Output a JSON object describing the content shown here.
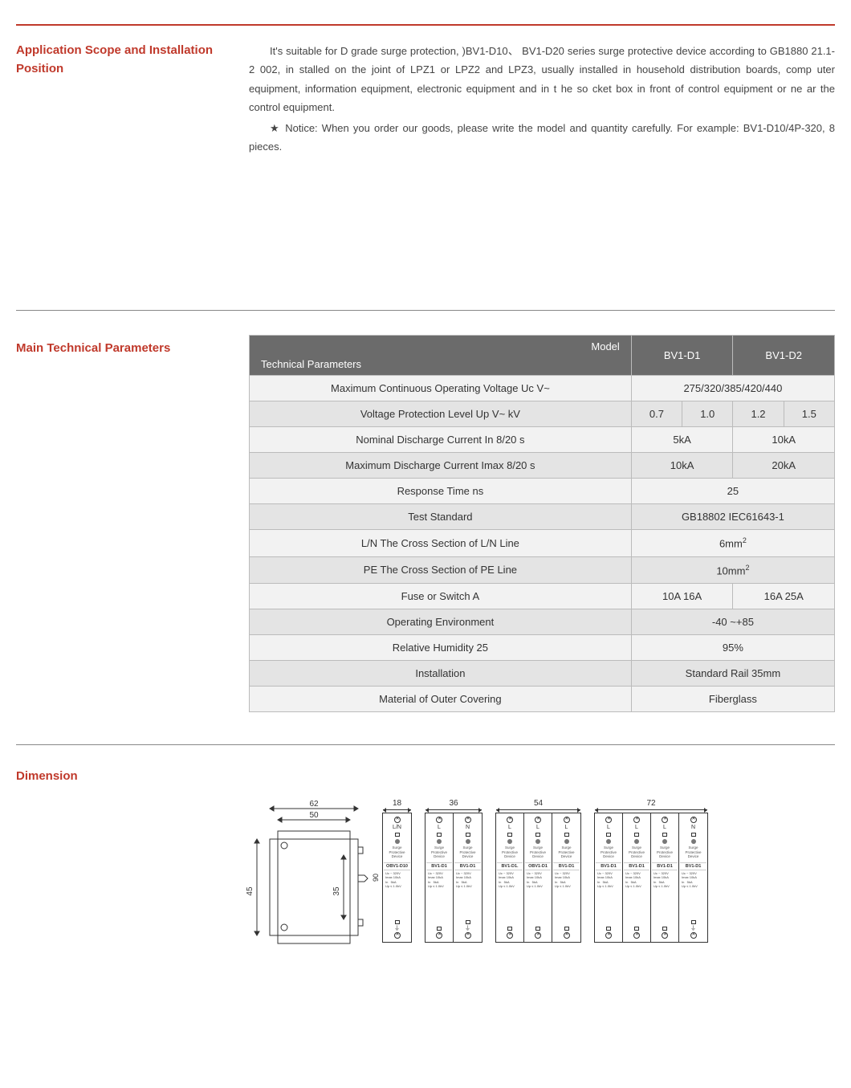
{
  "colors": {
    "accent": "#c0392b",
    "table_header_bg": "#6b6b6b",
    "row_odd": "#f2f2f2",
    "row_even": "#e4e4e4",
    "text": "#333333",
    "border": "#bbbbbb"
  },
  "intro": {
    "title": "Application Scope and Installation Position",
    "para1": "It's suitable for D grade surge protection,  )BV1-D10、  BV1-D20 series surge protective device according to GB1880 21.1-2 002,  in stalled on the joint of LPZ1 or LPZ2 and LPZ3, usually installed in household distribution boards, comp uter equipment, information equipment, electronic equipment and in t he so cket box in front of control equipment or ne ar the control equipment.",
    "notice": "Notice: When you order our goods, please write the model and quantity carefully. For example:   BV1-D10/4P-320, 8 pieces."
  },
  "table": {
    "title": "Main Technical Parameters",
    "header_diag_top": "Model",
    "header_diag_bottom": "Technical Parameters",
    "header_col_d1": "BV1-D1",
    "header_col_d2": "BV1-D2",
    "rows": [
      {
        "label": "Maximum Continuous Operating Voltage Uc   V~",
        "full": "275/320/385/420/440"
      },
      {
        "label": "Voltage Protection Level Up   V~   kV",
        "c1": "0.7",
        "c2": "1.0",
        "c3": "1.2",
        "c4": "1.5"
      },
      {
        "label": "Nominal Discharge Current In   8/20   s",
        "d1": "5kA",
        "d2": "10kA"
      },
      {
        "label": "Maximum Discharge Current Imax   8/20   s",
        "d1": "10kA",
        "d2": "20kA"
      },
      {
        "label": "Response Time ns",
        "full": "25"
      },
      {
        "label": "Test Standard",
        "full": "GB18802   IEC61643-1"
      },
      {
        "label": "L/N  The Cross Section of L/N Line",
        "full_html": "6mm<sup>2</sup>"
      },
      {
        "label": "PE The Cross Section of PE Line",
        "full_html": "10mm<sup>2</sup>"
      },
      {
        "label": "Fuse or Switch   A",
        "d1": "10A   16A",
        "d2": "16A   25A"
      },
      {
        "label": "Operating Environment",
        "full": "-40   ~+85"
      },
      {
        "label": "Relative Humidity   25",
        "full": "95%"
      },
      {
        "label": "Installation",
        "full": "Standard Rail 35mm"
      },
      {
        "label": "Material of Outer Covering",
        "full": "Fiberglass"
      }
    ]
  },
  "dimension": {
    "title": "Dimension",
    "side_view": {
      "outer_w": 62,
      "inner_w": 50,
      "depth": 45,
      "clip": 35
    },
    "height_label": "90",
    "modules": [
      {
        "width": "18",
        "poles": 1,
        "cells": [
          {
            "term": "L/N",
            "model": "OBV1-D10",
            "uc": "320V",
            "imax": "10kA",
            "in": "5kA",
            "up": "1.0kV",
            "ground": true
          }
        ]
      },
      {
        "width": "36",
        "poles": 2,
        "cells": [
          {
            "term": "L",
            "model": "BV1-D1",
            "uc": "320V",
            "imax": "10kA",
            "in": "5kA",
            "up": "1.0kV"
          },
          {
            "term": "N",
            "model": "BV1-D1",
            "uc": "320V",
            "imax": "10kA",
            "in": "5kA",
            "up": "1.0kV",
            "ground": true
          }
        ]
      },
      {
        "width": "54",
        "poles": 3,
        "cells": [
          {
            "term": "L",
            "model": "BV1-D1.",
            "uc": "320V",
            "imax": "10kA",
            "in": "5kA",
            "up": "1.0kV"
          },
          {
            "term": "L",
            "model": "OBV1-D1",
            "uc": "320V",
            "imax": "10kA",
            "in": "5kA",
            "up": "1.0kV"
          },
          {
            "term": "L",
            "model": "BV1-D1",
            "uc": "320V",
            "imax": "10kA",
            "in": "5kA",
            "up": "1.0kV"
          }
        ]
      },
      {
        "width": "72",
        "poles": 4,
        "cells": [
          {
            "term": "L",
            "model": "BV1-D1",
            "uc": "320V",
            "imax": "10kA",
            "in": "5kA",
            "up": "1.0kV"
          },
          {
            "term": "L",
            "model": "BV1-D1",
            "uc": "320V",
            "imax": "10kA",
            "in": "5kA",
            "up": "1.0kV"
          },
          {
            "term": "L",
            "model": "BV1-D1",
            "uc": "320V",
            "imax": "10kA",
            "in": "5kA",
            "up": "1.0kV"
          },
          {
            "term": "N",
            "model": "BV1-D1",
            "uc": "320V",
            "imax": "10kA",
            "in": "5kA",
            "up": "1.0kV",
            "ground": true
          }
        ]
      }
    ],
    "spd_label": "Surge Protective Device"
  }
}
